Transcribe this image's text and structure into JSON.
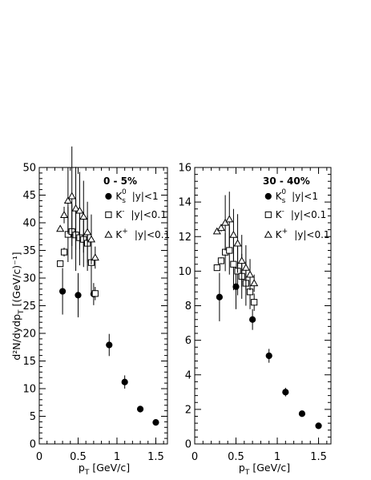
{
  "figure": {
    "xlabel_main": "p",
    "xlabel_sub": "T",
    "xlabel_unit": " [GeV/c]",
    "ylabel": "d²N/dydp",
    "ylabel_sub": "T",
    "ylabel_unit": " [(GeV/c)⁻¹]"
  },
  "legend": [
    {
      "marker": "filled-circle",
      "name": "K",
      "sup": "0",
      "sub": "s",
      "cut": "|y|<1"
    },
    {
      "marker": "open-square",
      "name": "K",
      "sup": "-",
      "sub": "",
      "cut": "|y|<0.1"
    },
    {
      "marker": "open-triangle",
      "name": "K",
      "sup": "+",
      "sub": "",
      "cut": "|y|<0.1"
    }
  ],
  "chart_data": [
    {
      "type": "scatter",
      "title": "0 - 5%",
      "xlim": [
        0,
        1.65
      ],
      "ylim": [
        0,
        50
      ],
      "xticks": [
        0,
        0.5,
        1,
        1.5
      ],
      "xtick_labels": [
        "0",
        "0.5",
        "1",
        "1.5"
      ],
      "yticks": [
        0,
        5,
        10,
        15,
        20,
        25,
        30,
        35,
        40,
        45,
        50
      ],
      "ytick_labels": [
        "0",
        "5",
        "10",
        "15",
        "20",
        "25",
        "30",
        "35",
        "40",
        "45",
        "50"
      ],
      "series": [
        {
          "name": "K0s |y|<1",
          "marker": "filled-circle",
          "x": [
            0.3,
            0.5,
            0.7,
            0.9,
            1.1,
            1.3,
            1.5
          ],
          "y": [
            27.6,
            26.9,
            27.1,
            17.9,
            11.2,
            6.3,
            3.9
          ],
          "yerr": [
            4.2,
            4.0,
            2.0,
            2.0,
            1.2,
            0.6,
            0.3
          ]
        },
        {
          "name": "K- |y|<0.1",
          "marker": "open-square",
          "x": [
            0.27,
            0.32,
            0.37,
            0.42,
            0.47,
            0.52,
            0.57,
            0.62,
            0.67,
            0.72
          ],
          "y": [
            32.6,
            34.7,
            37.9,
            38.4,
            37.8,
            37.3,
            37.0,
            36.3,
            32.8,
            27.2
          ],
          "yerr": [
            0,
            0.8,
            5.0,
            5.0,
            6.5,
            5.0,
            5.0,
            5.0,
            6.0,
            1.2
          ]
        },
        {
          "name": "K+ |y|<0.1",
          "marker": "open-triangle",
          "x": [
            0.27,
            0.32,
            0.37,
            0.42,
            0.47,
            0.52,
            0.57,
            0.62,
            0.67,
            0.72
          ],
          "y": [
            38.9,
            41.4,
            44.0,
            44.8,
            42.6,
            42.2,
            41.1,
            38.3,
            37.0,
            33.7
          ],
          "yerr": [
            0,
            1.5,
            6.0,
            9.0,
            7.5,
            7.0,
            6.5,
            5.5,
            4.5,
            2.0
          ]
        }
      ]
    },
    {
      "type": "scatter",
      "title": "30 - 40%",
      "xlim": [
        0,
        1.65
      ],
      "ylim": [
        0,
        16
      ],
      "xticks": [
        0,
        0.5,
        1,
        1.5
      ],
      "xtick_labels": [
        "0",
        "0.5",
        "1",
        "1.5"
      ],
      "yticks": [
        0,
        2,
        4,
        6,
        8,
        10,
        12,
        14,
        16
      ],
      "ytick_labels": [
        "0",
        "2",
        "4",
        "6",
        "8",
        "10",
        "12",
        "14",
        "16"
      ],
      "series": [
        {
          "name": "K0s |y|<1",
          "marker": "filled-circle",
          "x": [
            0.3,
            0.5,
            0.7,
            0.9,
            1.1,
            1.3,
            1.5
          ],
          "y": [
            8.5,
            9.1,
            7.2,
            5.1,
            3.0,
            1.75,
            1.05
          ],
          "yerr": [
            1.4,
            1.3,
            0.6,
            0.4,
            0.25,
            0.15,
            0.07
          ]
        },
        {
          "name": "K- |y|<0.1",
          "marker": "open-square",
          "x": [
            0.27,
            0.32,
            0.37,
            0.42,
            0.47,
            0.52,
            0.57,
            0.62,
            0.67,
            0.72
          ],
          "y": [
            10.2,
            10.6,
            11.1,
            11.2,
            10.4,
            10.0,
            9.7,
            9.3,
            8.8,
            8.2
          ],
          "yerr": [
            0,
            0.2,
            1.1,
            1.4,
            1.5,
            1.4,
            1.3,
            1.3,
            1.0,
            0.5
          ]
        },
        {
          "name": "K+ |y|<0.1",
          "marker": "open-triangle",
          "x": [
            0.27,
            0.32,
            0.37,
            0.42,
            0.47,
            0.52,
            0.57,
            0.62,
            0.67,
            0.72
          ],
          "y": [
            12.3,
            12.5,
            12.8,
            13.0,
            12.1,
            11.6,
            10.6,
            10.2,
            9.8,
            9.3
          ],
          "yerr": [
            0,
            0.2,
            1.6,
            1.6,
            1.5,
            1.7,
            1.5,
            1.3,
            0.9,
            0.5
          ]
        }
      ]
    }
  ]
}
